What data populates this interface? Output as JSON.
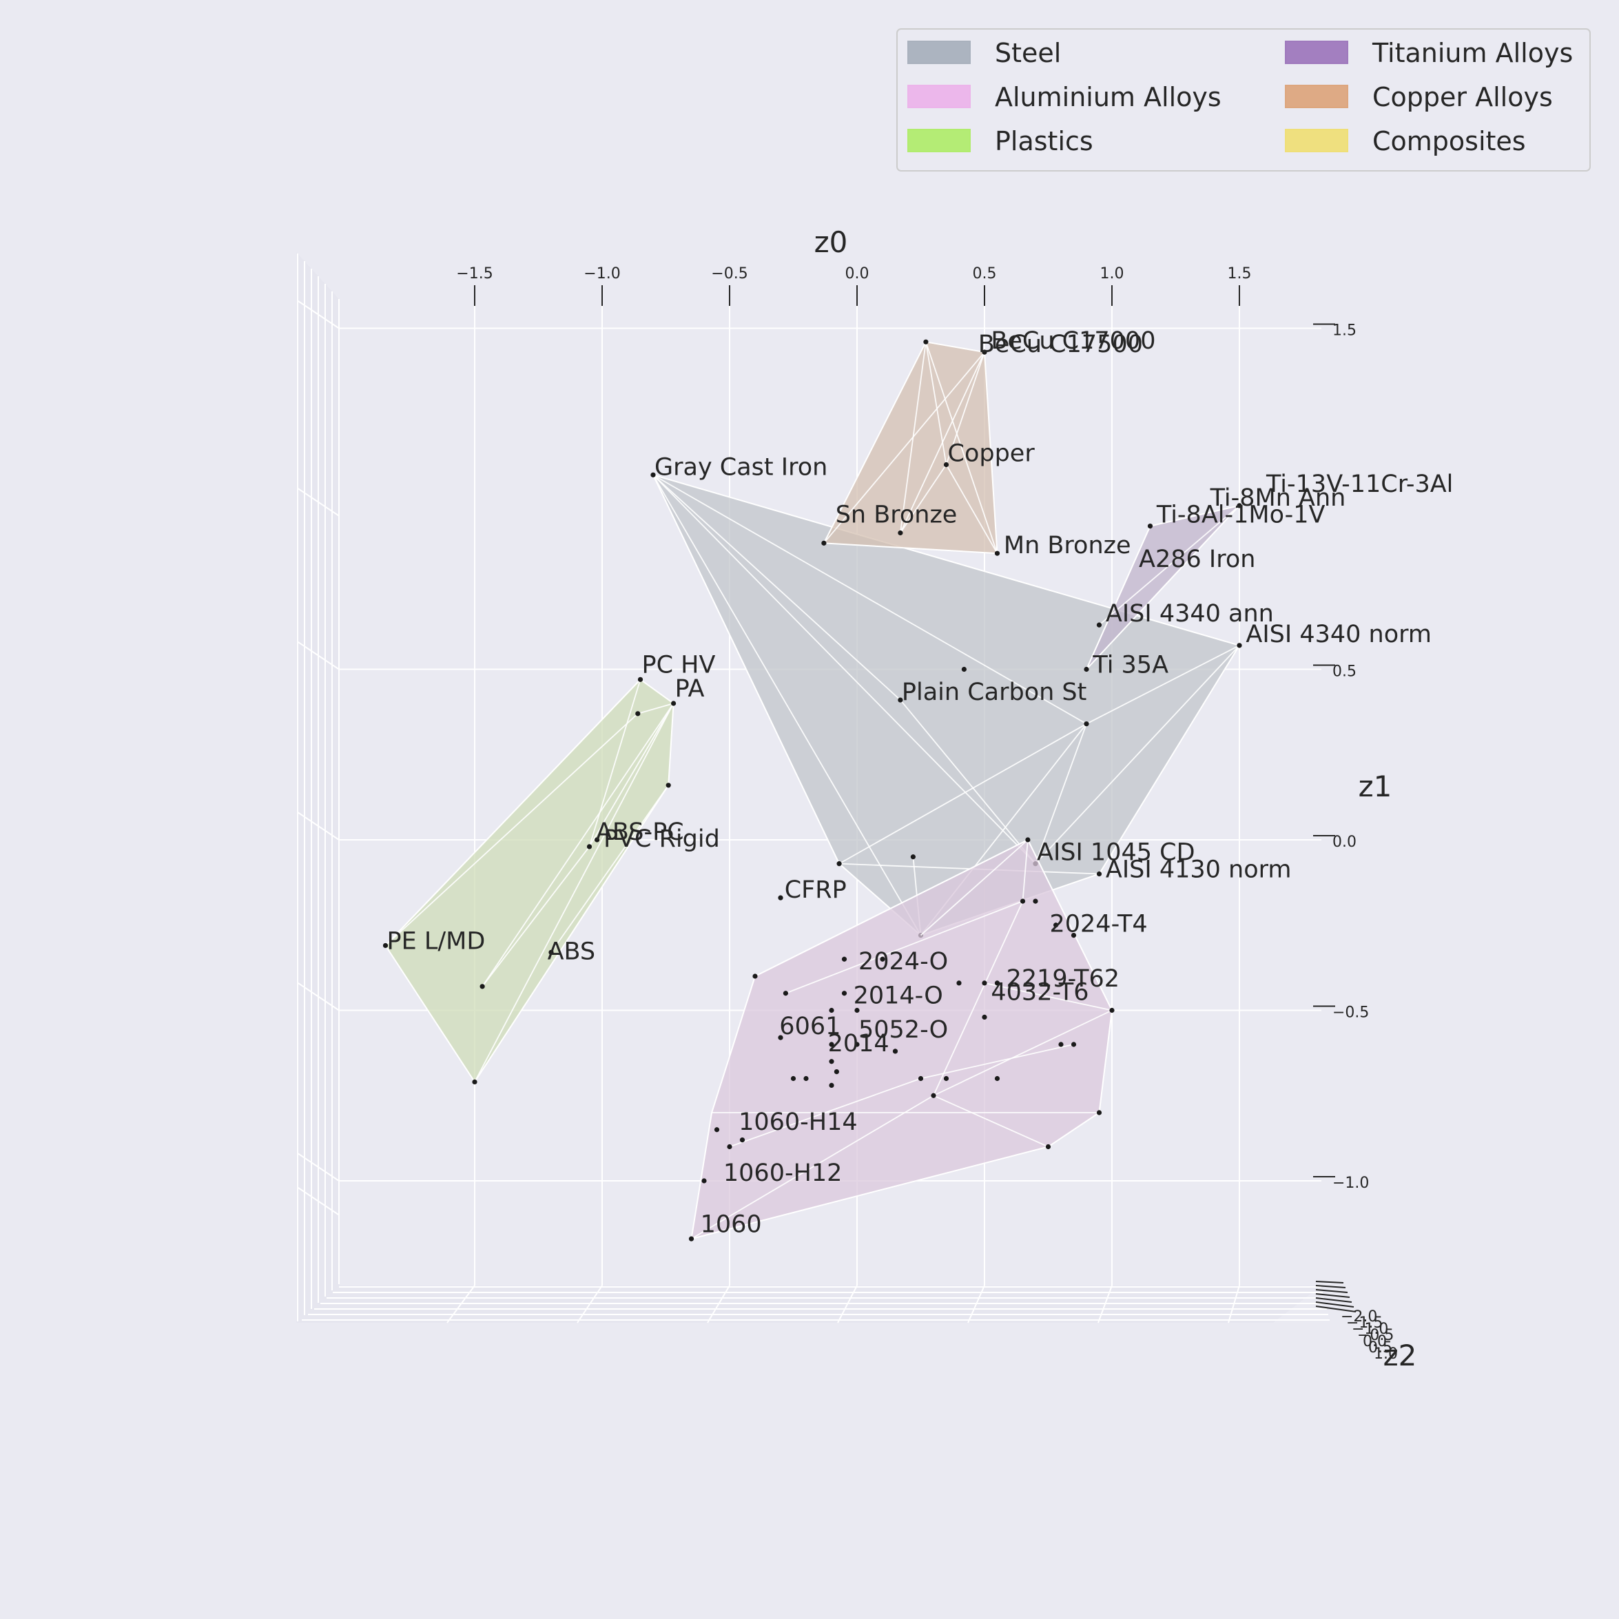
{
  "chart_data": {
    "type": "scatter",
    "projection": "3d",
    "axes": {
      "z0": {
        "label": "z0",
        "ticks": [
          "−1.5",
          "−1.0",
          "−0.5",
          "0.0",
          "0.5",
          "1.0",
          "1.5"
        ],
        "tick_values": [
          -1.5,
          -1.0,
          -0.5,
          0.0,
          0.5,
          1.0,
          1.5
        ],
        "range": [
          -1.75,
          1.75
        ]
      },
      "z1": {
        "label": "z1",
        "ticks": [
          "1.5",
          "0.5",
          "0.0",
          "−0.5",
          "−1.0"
        ],
        "tick_values": [
          1.5,
          0.5,
          0.0,
          -0.5,
          -1.0
        ],
        "range": [
          -1.3,
          1.5
        ]
      },
      "z2": {
        "label": "z2",
        "ticks": [
          "−2.0",
          "−1.5",
          "−1.0",
          "−0.5",
          "0.0",
          "0.5",
          "1.0"
        ]
      }
    },
    "legend": {
      "placement": "top-right",
      "columns": 2,
      "entries": [
        {
          "name": "Steel",
          "color": "#a9b1bd"
        },
        {
          "name": "Aluminium Alloys",
          "color": "#ecb4ea"
        },
        {
          "name": "Plastics",
          "color": "#b1ec6e"
        },
        {
          "name": "Titanium Alloys",
          "color": "#9f79bd"
        },
        {
          "name": "Copper Alloys",
          "color": "#dda67e"
        },
        {
          "name": "Composites",
          "color": "#efdf78"
        }
      ]
    },
    "groups": [
      {
        "name": "Steel",
        "fill": "#c2c5cb",
        "hull": [
          [
            -0.8,
            1.07
          ],
          [
            1.5,
            0.57
          ],
          [
            0.95,
            -0.1
          ],
          [
            0.25,
            -0.28
          ],
          [
            -0.07,
            -0.07
          ]
        ],
        "edges": [
          [
            [
              -0.8,
              1.07
            ],
            [
              0.25,
              -0.28
            ]
          ],
          [
            [
              -0.8,
              1.07
            ],
            [
              0.7,
              -0.07
            ]
          ],
          [
            [
              -0.8,
              1.07
            ],
            [
              0.9,
              0.34
            ]
          ],
          [
            [
              -0.8,
              1.07
            ],
            [
              0.17,
              0.41
            ]
          ],
          [
            [
              -0.8,
              1.07
            ],
            [
              -0.07,
              -0.07
            ]
          ],
          [
            [
              0.9,
              0.34
            ],
            [
              1.5,
              0.57
            ]
          ],
          [
            [
              0.9,
              0.34
            ],
            [
              0.7,
              -0.07
            ]
          ],
          [
            [
              0.9,
              0.34
            ],
            [
              -0.07,
              -0.07
            ]
          ],
          [
            [
              0.9,
              0.34
            ],
            [
              0.25,
              -0.28
            ]
          ],
          [
            [
              -0.07,
              -0.07
            ],
            [
              0.95,
              -0.1
            ]
          ],
          [
            [
              0.17,
              0.41
            ],
            [
              0.7,
              -0.07
            ]
          ],
          [
            [
              0.22,
              -0.05
            ],
            [
              0.25,
              -0.28
            ]
          ],
          [
            [
              1.5,
              0.57
            ],
            [
              0.7,
              -0.07
            ]
          ]
        ],
        "points": [
          [
            -0.8,
            1.07
          ],
          [
            1.5,
            0.57
          ],
          [
            0.17,
            0.41
          ],
          [
            0.42,
            0.5
          ],
          [
            0.95,
            -0.1
          ],
          [
            0.7,
            -0.07
          ],
          [
            0.9,
            0.34
          ],
          [
            0.22,
            -0.05
          ],
          [
            0.25,
            -0.28
          ],
          [
            -0.07,
            -0.07
          ],
          [
            -0.3,
            -0.17
          ]
        ]
      },
      {
        "name": "Copper Alloys",
        "fill": "#d4c0b2",
        "hull": [
          [
            0.27,
            1.46
          ],
          [
            0.5,
            1.43
          ],
          [
            0.55,
            0.84
          ],
          [
            -0.13,
            0.87
          ]
        ],
        "edges": [
          [
            [
              0.27,
              1.46
            ],
            [
              0.17,
              0.9
            ]
          ],
          [
            [
              0.27,
              1.46
            ],
            [
              0.55,
              0.84
            ]
          ],
          [
            [
              0.27,
              1.46
            ],
            [
              0.35,
              1.1
            ]
          ],
          [
            [
              0.5,
              1.43
            ],
            [
              0.17,
              0.9
            ]
          ],
          [
            [
              0.5,
              1.43
            ],
            [
              -0.13,
              0.87
            ]
          ],
          [
            [
              0.35,
              1.1
            ],
            [
              0.55,
              0.84
            ]
          ],
          [
            [
              0.35,
              1.1
            ],
            [
              0.17,
              0.9
            ]
          ],
          [
            [
              0.5,
              1.43
            ],
            [
              0.35,
              1.1
            ]
          ]
        ],
        "points": [
          [
            0.27,
            1.46
          ],
          [
            0.5,
            1.43
          ],
          [
            0.35,
            1.1
          ],
          [
            0.17,
            0.9
          ],
          [
            0.55,
            0.84
          ],
          [
            -0.13,
            0.87
          ]
        ]
      },
      {
        "name": "Titanium Alloys",
        "fill": "#c2b6cc",
        "hull": [
          [
            1.15,
            0.92
          ],
          [
            1.5,
            0.98
          ],
          [
            0.9,
            0.5
          ]
        ],
        "edges": [
          [
            [
              1.15,
              0.92
            ],
            [
              0.9,
              0.5
            ]
          ],
          [
            [
              1.5,
              0.98
            ],
            [
              0.95,
              0.63
            ]
          ],
          [
            [
              1.15,
              0.92
            ],
            [
              1.5,
              0.98
            ]
          ]
        ],
        "points": [
          [
            1.15,
            0.92
          ],
          [
            1.5,
            0.98
          ],
          [
            0.95,
            0.63
          ],
          [
            0.9,
            0.5
          ]
        ]
      },
      {
        "name": "Plastics",
        "fill": "#cfdcb8",
        "hull": [
          [
            -0.85,
            0.47
          ],
          [
            -0.72,
            0.4
          ],
          [
            -0.74,
            0.16
          ],
          [
            -1.5,
            -0.71
          ],
          [
            -1.85,
            -0.31
          ]
        ],
        "edges": [
          [
            [
              -0.85,
              0.47
            ],
            [
              -1.85,
              -0.31
            ]
          ],
          [
            [
              -0.72,
              0.4
            ],
            [
              -1.5,
              -0.71
            ]
          ],
          [
            [
              -0.72,
              0.4
            ],
            [
              -1.47,
              -0.43
            ]
          ],
          [
            [
              -0.85,
              0.47
            ],
            [
              -1.05,
              -0.02
            ]
          ],
          [
            [
              -0.72,
              0.4
            ],
            [
              -1.05,
              -0.02
            ]
          ],
          [
            [
              -0.86,
              0.37
            ],
            [
              -1.85,
              -0.31
            ]
          ],
          [
            [
              -1.05,
              -0.02
            ],
            [
              -1.47,
              -0.43
            ]
          ],
          [
            [
              -0.74,
              0.16
            ],
            [
              -1.2,
              -0.33
            ]
          ],
          [
            [
              -0.86,
              0.37
            ],
            [
              -0.72,
              0.4
            ]
          ]
        ],
        "points": [
          [
            -0.85,
            0.47
          ],
          [
            -0.72,
            0.4
          ],
          [
            -0.86,
            0.37
          ],
          [
            -0.74,
            0.16
          ],
          [
            -1.05,
            -0.02
          ],
          [
            -1.02,
            0.0
          ],
          [
            -1.85,
            -0.31
          ],
          [
            -1.5,
            -0.71
          ],
          [
            -1.47,
            -0.43
          ],
          [
            -1.2,
            -0.33
          ]
        ]
      },
      {
        "name": "Aluminium Alloys",
        "fill": "#dbc8dc",
        "hull": [
          [
            0.67,
            0.0
          ],
          [
            1.0,
            -0.5
          ],
          [
            0.95,
            -0.8
          ],
          [
            0.75,
            -0.9
          ],
          [
            -0.65,
            -1.17
          ],
          [
            -0.57,
            -0.8
          ],
          [
            -0.4,
            -0.4
          ]
        ],
        "edges": [
          [
            [
              0.67,
              0.0
            ],
            [
              0.65,
              -0.18
            ]
          ],
          [
            [
              0.67,
              0.0
            ],
            [
              0.25,
              -0.28
            ]
          ],
          [
            [
              0.67,
              0.0
            ],
            [
              -0.4,
              -0.4
            ]
          ],
          [
            [
              1.0,
              -0.5
            ],
            [
              0.3,
              -0.75
            ]
          ],
          [
            [
              0.95,
              -0.8
            ],
            [
              -0.57,
              -0.8
            ]
          ],
          [
            [
              0.75,
              -0.9
            ],
            [
              0.3,
              -0.75
            ]
          ],
          [
            [
              -0.65,
              -1.17
            ],
            [
              0.3,
              -0.75
            ]
          ],
          [
            [
              0.65,
              -0.18
            ],
            [
              -0.28,
              -0.45
            ]
          ],
          [
            [
              0.25,
              -0.7
            ],
            [
              0.85,
              -0.6
            ]
          ],
          [
            [
              0.5,
              -0.42
            ],
            [
              1.0,
              -0.5
            ]
          ],
          [
            [
              -0.5,
              -0.9
            ],
            [
              0.25,
              -0.7
            ]
          ],
          [
            [
              0.65,
              -0.18
            ],
            [
              0.3,
              -0.75
            ]
          ]
        ],
        "points": [
          [
            -0.4,
            -0.4
          ],
          [
            -0.28,
            -0.45
          ],
          [
            -0.3,
            -0.58
          ],
          [
            -0.05,
            -0.35
          ],
          [
            0.1,
            -0.35
          ],
          [
            -0.05,
            -0.45
          ],
          [
            -0.1,
            -0.5
          ],
          [
            0.0,
            -0.5
          ],
          [
            0.4,
            -0.42
          ],
          [
            0.5,
            -0.42
          ],
          [
            0.55,
            -0.42
          ],
          [
            0.5,
            -0.52
          ],
          [
            0.85,
            -0.28
          ],
          [
            0.78,
            -0.25
          ],
          [
            0.7,
            -0.18
          ],
          [
            0.65,
            -0.18
          ],
          [
            -0.1,
            -0.6
          ],
          [
            -0.1,
            -0.65
          ],
          [
            -0.08,
            -0.68
          ],
          [
            0.0,
            -0.6
          ],
          [
            0.15,
            -0.62
          ],
          [
            -0.25,
            -0.7
          ],
          [
            -0.2,
            -0.7
          ],
          [
            -0.1,
            -0.72
          ],
          [
            -0.55,
            -0.85
          ],
          [
            -0.5,
            -0.9
          ],
          [
            -0.45,
            -0.88
          ],
          [
            -0.6,
            -1.0
          ],
          [
            0.25,
            -0.7
          ],
          [
            0.3,
            -0.75
          ],
          [
            0.35,
            -0.7
          ],
          [
            0.55,
            -0.7
          ],
          [
            0.8,
            -0.6
          ],
          [
            0.85,
            -0.6
          ],
          [
            0.95,
            -0.8
          ],
          [
            0.75,
            -0.9
          ],
          [
            1.0,
            -0.5
          ],
          [
            -0.65,
            -1.17
          ],
          [
            0.67,
            0.0
          ]
        ]
      },
      {
        "name": "Composites",
        "fill": "#efdf78",
        "hull": [],
        "edges": [],
        "points": []
      }
    ],
    "point_labels": [
      {
        "text": "BeCu C17000",
        "x": 0.52,
        "y": 1.44
      },
      {
        "text": "BeCu C17500",
        "x": 0.47,
        "y": 1.43
      },
      {
        "text": "Copper",
        "x": 0.35,
        "y": 1.11
      },
      {
        "text": "Gray Cast Iron",
        "x": -0.8,
        "y": 1.07
      },
      {
        "text": "Sn Bronze",
        "x": -0.09,
        "y": 0.93
      },
      {
        "text": "Mn Bronze",
        "x": 0.57,
        "y": 0.84
      },
      {
        "text": "Ti-13V-11Cr-3Al",
        "x": 1.6,
        "y": 1.02
      },
      {
        "text": "Ti-8Mn Ann",
        "x": 1.38,
        "y": 0.98
      },
      {
        "text": "Ti-8Al-1Mo-1V",
        "x": 1.17,
        "y": 0.93
      },
      {
        "text": "A286 Iron",
        "x": 1.1,
        "y": 0.8
      },
      {
        "text": "AISI 4340 ann",
        "x": 0.97,
        "y": 0.64
      },
      {
        "text": "AISI 4340 norm",
        "x": 1.52,
        "y": 0.58
      },
      {
        "text": "Ti 35A",
        "x": 0.92,
        "y": 0.49
      },
      {
        "text": "Plain Carbon St",
        "x": 0.17,
        "y": 0.41
      },
      {
        "text": "PC HV",
        "x": -0.85,
        "y": 0.49
      },
      {
        "text": "PA",
        "x": -0.72,
        "y": 0.42
      },
      {
        "text": "ABS-PC",
        "x": -1.03,
        "y": 0.0
      },
      {
        "text": "PVC Rigid",
        "x": -1.0,
        "y": -0.02
      },
      {
        "text": "AISI 1045 CD",
        "x": 0.7,
        "y": -0.06
      },
      {
        "text": "AISI 4130 norm",
        "x": 0.97,
        "y": -0.11
      },
      {
        "text": "CFRP",
        "x": -0.29,
        "y": -0.17
      },
      {
        "text": "PE L/MD",
        "x": -1.85,
        "y": -0.32
      },
      {
        "text": "ABS",
        "x": -1.22,
        "y": -0.35
      },
      {
        "text": "2024-T4",
        "x": 0.75,
        "y": -0.27
      },
      {
        "text": "2024-O",
        "x": 0.0,
        "y": -0.38
      },
      {
        "text": "2219-T62",
        "x": 0.58,
        "y": -0.43
      },
      {
        "text": "4032-T6",
        "x": 0.52,
        "y": -0.47
      },
      {
        "text": "2014-O",
        "x": -0.02,
        "y": -0.48
      },
      {
        "text": "6061",
        "x": -0.31,
        "y": -0.57
      },
      {
        "text": "5052-O",
        "x": 0.0,
        "y": -0.58
      },
      {
        "text": "2014",
        "x": -0.12,
        "y": -0.62
      },
      {
        "text": "1060-H14",
        "x": -0.47,
        "y": -0.85
      },
      {
        "text": "1060-H12",
        "x": -0.53,
        "y": -1.0
      },
      {
        "text": "1060",
        "x": -0.62,
        "y": -1.15
      }
    ]
  }
}
